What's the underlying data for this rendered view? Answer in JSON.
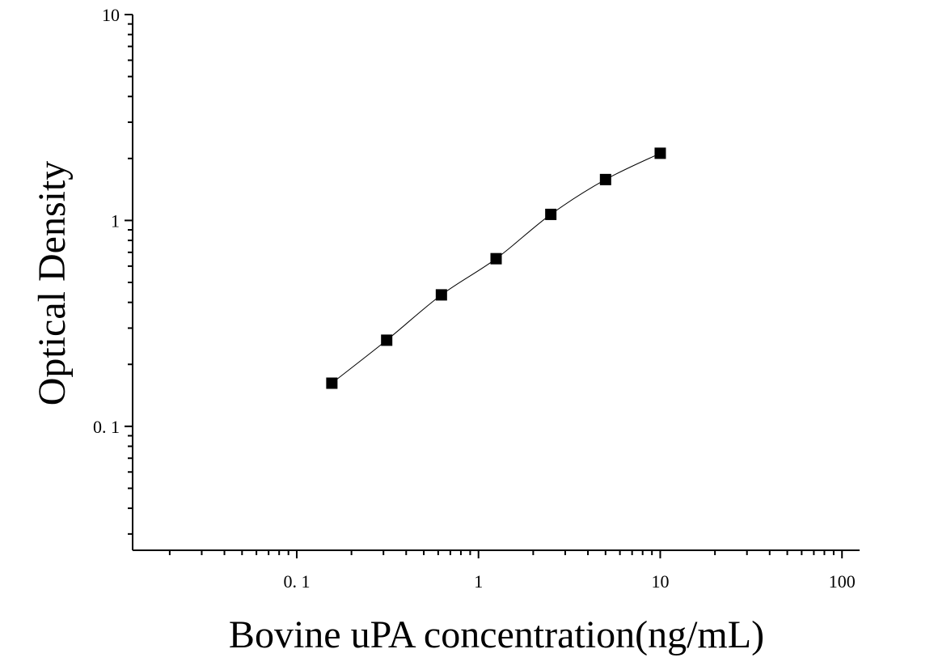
{
  "chart_data": {
    "type": "scatter",
    "title": "",
    "xlabel": "Bovine uPA concentration(ng/mL)",
    "ylabel": "Optical Density",
    "x_scale": "log",
    "y_scale": "log",
    "xlim": [
      0.0125,
      125
    ],
    "ylim": [
      0.025,
      10
    ],
    "x_ticks": [
      {
        "value": 0.1,
        "label": "0. 1"
      },
      {
        "value": 1,
        "label": "1"
      },
      {
        "value": 10,
        "label": "10"
      },
      {
        "value": 100,
        "label": "100"
      }
    ],
    "y_ticks": [
      {
        "value": 0.1,
        "label": "0. 1"
      },
      {
        "value": 1,
        "label": "1"
      },
      {
        "value": 10,
        "label": "10"
      }
    ],
    "grid": false,
    "legend": "none",
    "marker": "square",
    "series": [
      {
        "x": [
          0.156,
          0.3125,
          0.625,
          1.25,
          2.5,
          5,
          10
        ],
        "y": [
          0.162,
          0.262,
          0.435,
          0.652,
          1.07,
          1.58,
          2.12
        ]
      }
    ],
    "fit_curve": true,
    "colors": {
      "marker": "#000000",
      "line": "#000000",
      "axis": "#000000"
    }
  }
}
